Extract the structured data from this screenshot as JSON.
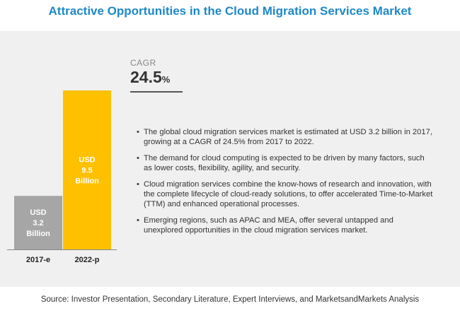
{
  "title": "Attractive Opportunities in the Cloud Migration Services Market",
  "cagr": {
    "label": "CAGR",
    "value": "24.5",
    "unit": "%"
  },
  "bullets": [
    "The global cloud migration services market is estimated at USD 3.2 billion in 2017, growing at a CAGR of 24.5% from 2017 to 2022.",
    "The demand for cloud computing is expected to be driven by many factors, such as lower costs, flexibility, agility, and security.",
    "Cloud migration services combine the know-hows of research and innovation, with the complete lifecycle of cloud-ready solutions, to offer accelerated Time-to-Market (TTM) and enhanced operational processes.",
    "Emerging regions, such as APAC and MEA, offer several untapped and unexplored opportunities in the cloud migration services market."
  ],
  "source": "Source: Investor Presentation, Secondary Literature, Expert Interviews, and MarketsandMarkets Analysis",
  "chart_data": {
    "type": "bar",
    "categories": [
      "2017-e",
      "2022-p"
    ],
    "values": [
      3.2,
      9.5
    ],
    "bar_labels": [
      [
        "USD",
        "3.2",
        "Billion"
      ],
      [
        "USD",
        "9.5",
        "Billion"
      ]
    ],
    "colors": [
      "#a6a6a6",
      "#ffc000"
    ],
    "ylim": [
      0,
      9.5
    ]
  }
}
